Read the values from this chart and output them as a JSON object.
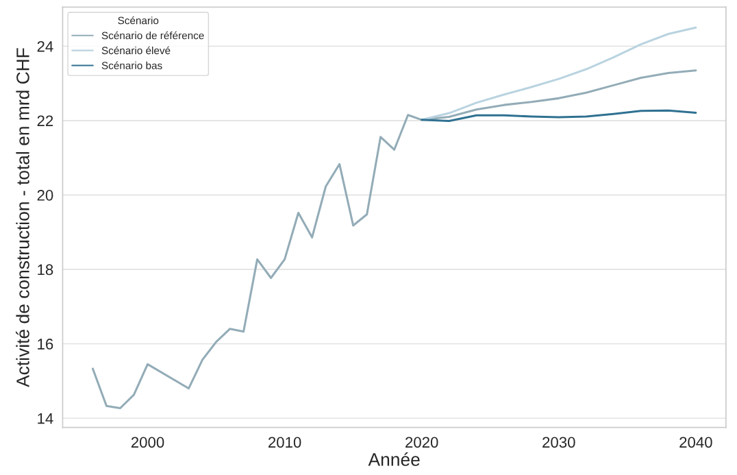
{
  "chart_data": {
    "type": "line",
    "xlabel": "Année",
    "ylabel": "Activité de construction - total en mrd CHF",
    "legend_title": "Scénario",
    "legend": "top left",
    "grid": "y",
    "xlim": [
      1993.8,
      2042.2
    ],
    "xticks": [
      2000,
      2010,
      2020,
      2030,
      2040
    ],
    "ylim": [
      13.75,
      25.05
    ],
    "yticks": [
      14,
      16,
      18,
      20,
      22,
      24
    ],
    "series": [
      {
        "name": "Scénario de référence",
        "color": "#93acb7",
        "x": [
          1996,
          1997,
          1998,
          1999,
          2000,
          2003,
          2004,
          2005,
          2006,
          2007,
          2008,
          2009,
          2010,
          2011,
          2012,
          2013,
          2014,
          2015,
          2016,
          2017,
          2018,
          2019,
          2020,
          2022,
          2024,
          2026,
          2028,
          2030,
          2032,
          2034,
          2036,
          2038,
          2040
        ],
        "values": [
          15.33,
          14.33,
          14.27,
          14.63,
          15.45,
          14.8,
          15.57,
          16.05,
          16.4,
          16.33,
          18.27,
          17.77,
          18.27,
          19.52,
          18.86,
          20.23,
          20.83,
          19.18,
          19.48,
          21.56,
          21.22,
          22.15,
          22.02,
          22.1,
          22.3,
          22.42,
          22.5,
          22.6,
          22.75,
          22.95,
          23.15,
          23.28,
          23.35
        ]
      },
      {
        "name": "Scénario élevé",
        "color": "#b9d3e0",
        "x": [
          2020,
          2022,
          2024,
          2026,
          2028,
          2030,
          2032,
          2034,
          2036,
          2038,
          2040
        ],
        "values": [
          22.02,
          22.2,
          22.48,
          22.7,
          22.9,
          23.12,
          23.38,
          23.7,
          24.05,
          24.33,
          24.5
        ]
      },
      {
        "name": "Scénario bas",
        "color": "#2f7191",
        "x": [
          2020,
          2022,
          2024,
          2026,
          2028,
          2030,
          2032,
          2034,
          2036,
          2038,
          2040
        ],
        "values": [
          22.02,
          21.99,
          22.14,
          22.14,
          22.11,
          22.09,
          22.11,
          22.18,
          22.26,
          22.27,
          22.21
        ]
      }
    ]
  }
}
